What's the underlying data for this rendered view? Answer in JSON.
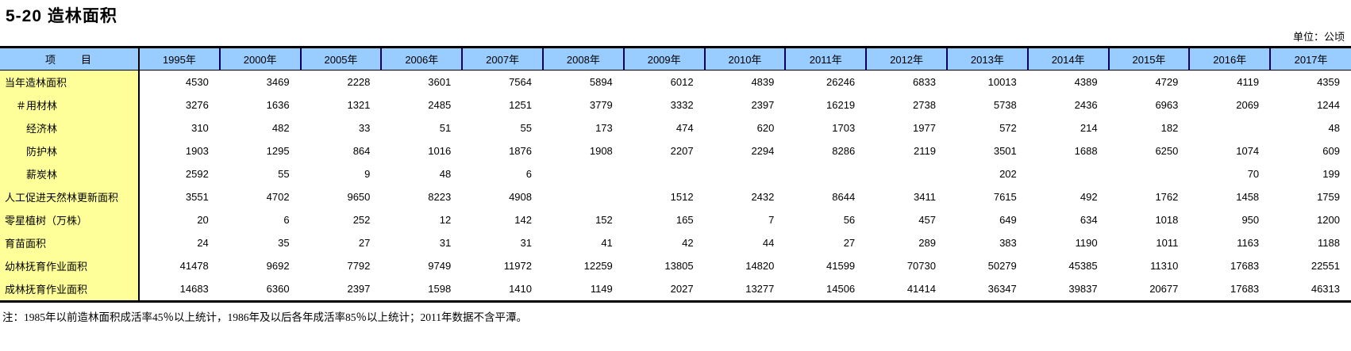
{
  "page": {
    "title": "5-20 造林面积",
    "unit_label": "单位：公顷",
    "footnote": "注：1985年以前造林面积成活率45％以上统计，1986年及以后各年成活率85％以上统计；2011年数据不含平潭。"
  },
  "colors": {
    "header_bg": "#99CCFF",
    "stub_bg": "#FFFF99",
    "border": "#000000"
  },
  "table": {
    "stub_header": "项　　目",
    "years": [
      "1995年",
      "2000年",
      "2005年",
      "2006年",
      "2007年",
      "2008年",
      "2009年",
      "2010年",
      "2011年",
      "2012年",
      "2013年",
      "2014年",
      "2015年",
      "2016年",
      "2017年"
    ],
    "rows": [
      {
        "label": "当年造林面积",
        "indent": 0,
        "values": [
          "4530",
          "3469",
          "2228",
          "3601",
          "7564",
          "5894",
          "6012",
          "4839",
          "26246",
          "6833",
          "10013",
          "4389",
          "4729",
          "4119",
          "4359"
        ]
      },
      {
        "label": "＃用材林",
        "indent": 1,
        "values": [
          "3276",
          "1636",
          "1321",
          "2485",
          "1251",
          "3779",
          "3332",
          "2397",
          "16219",
          "2738",
          "5738",
          "2436",
          "6963",
          "2069",
          "1244"
        ]
      },
      {
        "label": "经济林",
        "indent": 2,
        "values": [
          "310",
          "482",
          "33",
          "51",
          "55",
          "173",
          "474",
          "620",
          "1703",
          "1977",
          "572",
          "214",
          "182",
          "",
          "48"
        ]
      },
      {
        "label": "防护林",
        "indent": 2,
        "values": [
          "1903",
          "1295",
          "864",
          "1016",
          "1876",
          "1908",
          "2207",
          "2294",
          "8286",
          "2119",
          "3501",
          "1688",
          "6250",
          "1074",
          "609"
        ]
      },
      {
        "label": "薪炭林",
        "indent": 2,
        "values": [
          "2592",
          "55",
          "9",
          "48",
          "6",
          "",
          "",
          "",
          "",
          "",
          "202",
          "",
          "",
          "70",
          "199"
        ]
      },
      {
        "label": "人工促进天然林更新面积",
        "indent": 0,
        "values": [
          "3551",
          "4702",
          "9650",
          "8223",
          "4908",
          "",
          "1512",
          "2432",
          "8644",
          "3411",
          "7615",
          "492",
          "1762",
          "1458",
          "1759"
        ]
      },
      {
        "label": "零星植树（万株）",
        "indent": 0,
        "values": [
          "20",
          "6",
          "252",
          "12",
          "142",
          "152",
          "165",
          "7",
          "56",
          "457",
          "649",
          "634",
          "1018",
          "950",
          "1200"
        ]
      },
      {
        "label": "育苗面积",
        "indent": 0,
        "values": [
          "24",
          "35",
          "27",
          "31",
          "31",
          "41",
          "42",
          "44",
          "27",
          "289",
          "383",
          "1190",
          "1011",
          "1163",
          "1188"
        ]
      },
      {
        "label": "幼林抚育作业面积",
        "indent": 0,
        "values": [
          "41478",
          "9692",
          "7792",
          "9749",
          "11972",
          "12259",
          "13805",
          "14820",
          "41599",
          "70730",
          "50279",
          "45385",
          "11310",
          "17683",
          "22551"
        ]
      },
      {
        "label": "成林抚育作业面积",
        "indent": 0,
        "values": [
          "14683",
          "6360",
          "2397",
          "1598",
          "1410",
          "1149",
          "2027",
          "13277",
          "14506",
          "41414",
          "36347",
          "39837",
          "20677",
          "17683",
          "46313"
        ]
      }
    ]
  }
}
